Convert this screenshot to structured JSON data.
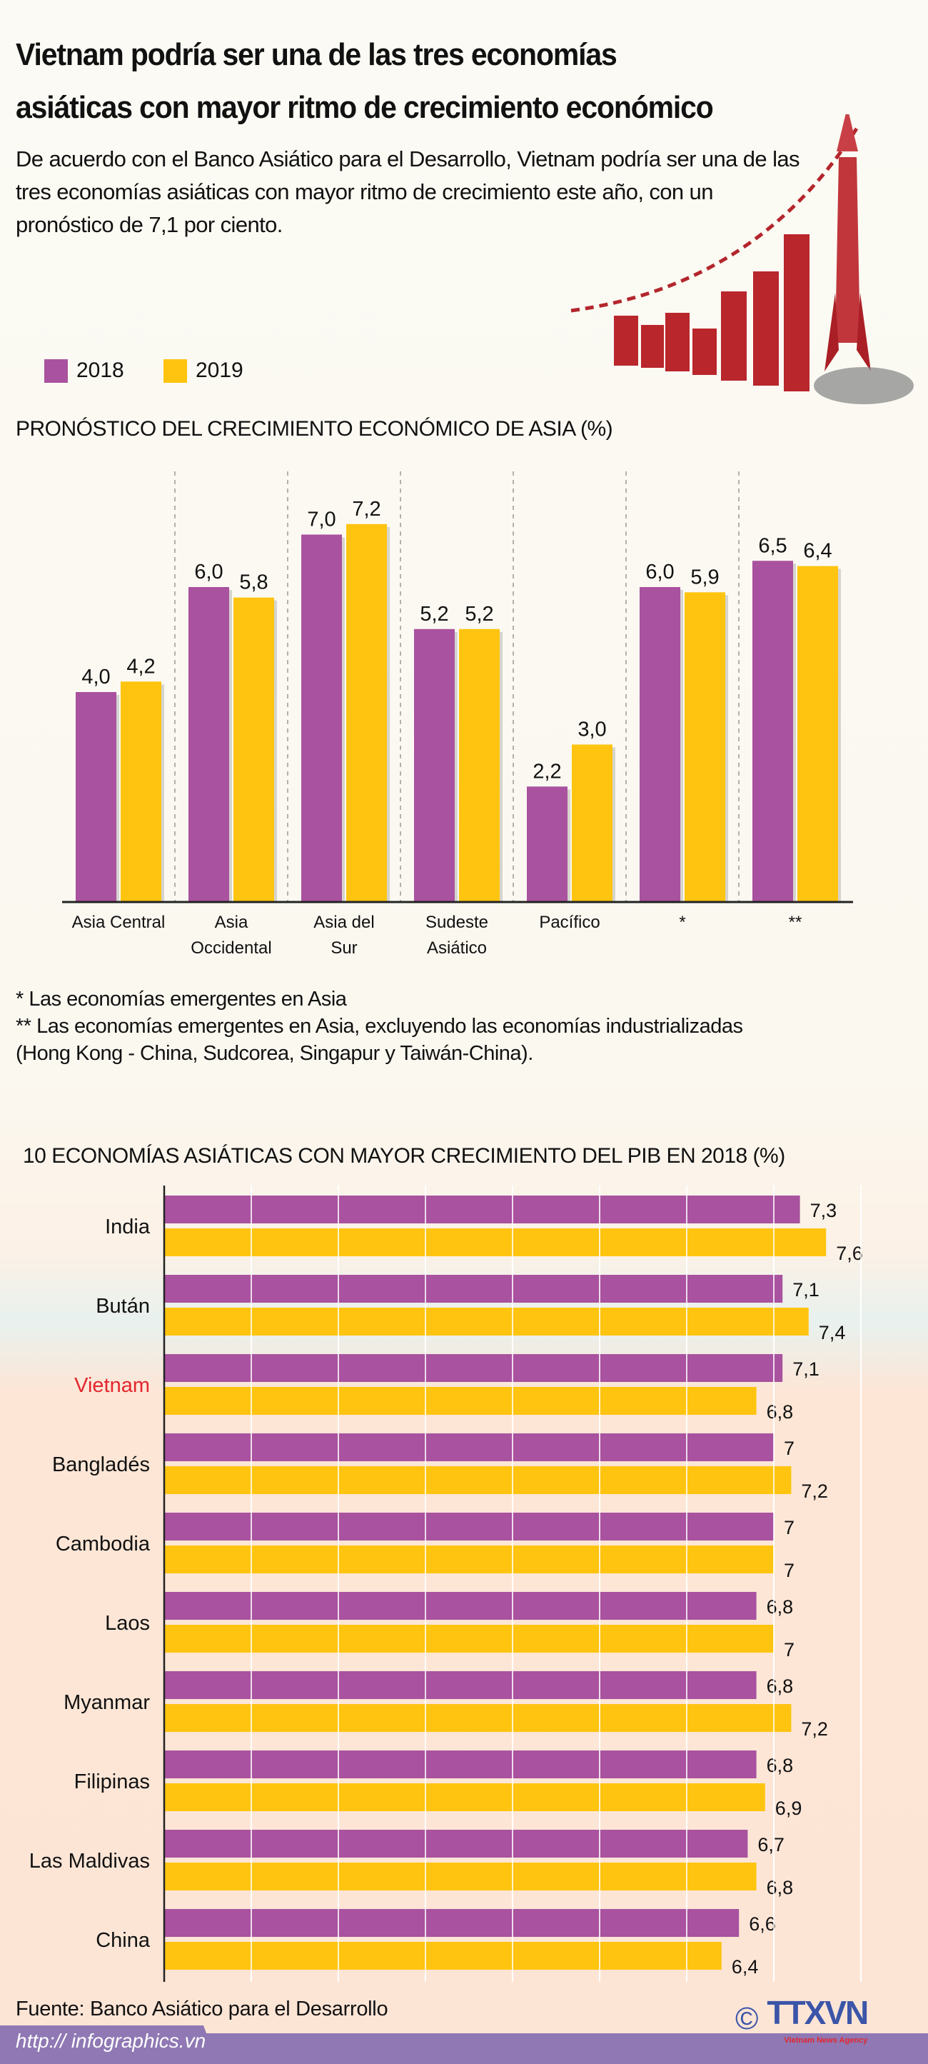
{
  "header": {
    "title_line1": "Vietnam podría ser una de las tres economías",
    "title_line2": "asiáticas con mayor ritmo de crecimiento económico",
    "subtitle": "De acuerdo con el Banco Asiático para el Desarrollo, Vietnam podría ser una de las tres economías asiáticas con mayor ritmo de crecimiento este año, con un pronóstico de 7,1 por ciento."
  },
  "legend": [
    {
      "label": "2018",
      "color": "#a9529f"
    },
    {
      "label": "2019",
      "color": "#ffc40f"
    }
  ],
  "notes": [
    "* Las economías emergentes en Asia",
    "** Las economías emergentes en Asia, excluyendo las economías industrializadas",
    "(Hong Kong - China, Sudcorea, Singapur y Taiwán-China)."
  ],
  "highlight_color": "#e3262d",
  "chart_data": [
    {
      "type": "bar",
      "title": "PRONÓSTICO DEL CRECIMIENTO ECONÓMICO DE ASIA (%)",
      "categories": [
        "Asia Central",
        "Asia Occidental",
        "Asia del Sur",
        "Sudeste Asiático",
        "Pacífico",
        "*",
        "**"
      ],
      "category_lines": [
        [
          "Asia Central"
        ],
        [
          "Asia",
          "Occidental"
        ],
        [
          "Asia del",
          "Sur"
        ],
        [
          "Sudeste",
          "Asiático"
        ],
        [
          "Pacífico"
        ],
        [
          "*"
        ],
        [
          "**"
        ]
      ],
      "series": [
        {
          "name": "2018",
          "values": [
            4.0,
            6.0,
            7.0,
            5.2,
            2.2,
            6.0,
            6.5
          ],
          "labels": [
            "4,0",
            "6,0",
            "7,0",
            "5,2",
            "2,2",
            "6,0",
            "6,5"
          ]
        },
        {
          "name": "2019",
          "values": [
            4.2,
            5.8,
            7.2,
            5.2,
            3.0,
            5.9,
            6.4
          ],
          "labels": [
            "4,2",
            "5,8",
            "7,2",
            "5,2",
            "3,0",
            "5,9",
            "6,4"
          ]
        }
      ],
      "ylim": [
        0,
        7.2
      ],
      "grid": false,
      "legend": "top-left"
    },
    {
      "type": "bar",
      "orientation": "horizontal",
      "title": "10 ECONOMÍAS ASIÁTICAS CON MAYOR CRECIMIENTO DEL PIB EN 2018 (%)",
      "categories": [
        "India",
        "Bután",
        "Vietnam",
        "Bangladés",
        "Cambodia",
        "Laos",
        "Myanmar",
        "Filipinas",
        "Las Maldivas",
        "China"
      ],
      "highlight": "Vietnam",
      "series": [
        {
          "name": "2018",
          "values": [
            7.3,
            7.1,
            7.1,
            7,
            7,
            6.8,
            6.8,
            6.8,
            6.7,
            6.6
          ],
          "labels": [
            "7,3",
            "7,1",
            "7,1",
            "7",
            "7",
            "6,8",
            "6,8",
            "6,8",
            "6,7",
            "6,6"
          ]
        },
        {
          "name": "2019",
          "values": [
            7.6,
            7.4,
            6.8,
            7.2,
            7,
            7,
            7.2,
            6.9,
            6.8,
            6.4
          ],
          "labels": [
            "7,6",
            "7,4",
            "6,8",
            "7,2",
            "7",
            "7",
            "7,2",
            "6,9",
            "6,8",
            "6,4"
          ]
        }
      ],
      "xlim": [
        0,
        8
      ],
      "grid": true,
      "legend": "top-left"
    }
  ],
  "footer": {
    "source": "Fuente: Banco Asiático para el Desarrollo",
    "url": "http:// infographics.vn",
    "logo_text": "TTXVN",
    "logo_sub": "Vietnam News Agency",
    "copyright": "©"
  }
}
